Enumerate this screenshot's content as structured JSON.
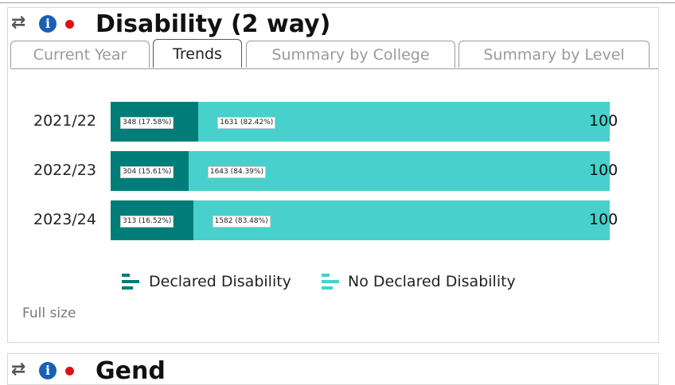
{
  "widget": {
    "title": "Disability (2 way)",
    "icons": [
      "refresh-icon",
      "info-icon",
      "status-dot-icon"
    ],
    "status_color": "#e01010"
  },
  "tabs": [
    {
      "label": "Current Year",
      "active": false
    },
    {
      "label": "Trends",
      "active": true
    },
    {
      "label": "Summary by College",
      "active": false
    },
    {
      "label": "Summary by Level",
      "active": false
    }
  ],
  "chart_data": {
    "type": "bar",
    "orientation": "horizontal",
    "stacked": "percent",
    "categories": [
      "2021/22",
      "2022/23",
      "2023/24"
    ],
    "series": [
      {
        "name": "Declared Disability",
        "color": "#007d78",
        "values": [
          348,
          304,
          313
        ],
        "labels": [
          "348 (17.58%)",
          "304 (15.61%)",
          "313 (16.52%)"
        ],
        "percent": [
          17.58,
          15.61,
          16.52
        ]
      },
      {
        "name": "No Declared Disability",
        "color": "#48d1cc",
        "values": [
          1631,
          1643,
          1582
        ],
        "labels": [
          "1631 (82.42%)",
          "1643 (84.39%)",
          "1582 (83.48%)"
        ],
        "percent": [
          82.42,
          84.39,
          83.48
        ]
      }
    ],
    "totals": [
      "100",
      "100",
      "100"
    ],
    "legend_position": "bottom"
  },
  "footer": {
    "full_size_label": "Full size"
  },
  "next_widget": {
    "title": "Gend"
  }
}
